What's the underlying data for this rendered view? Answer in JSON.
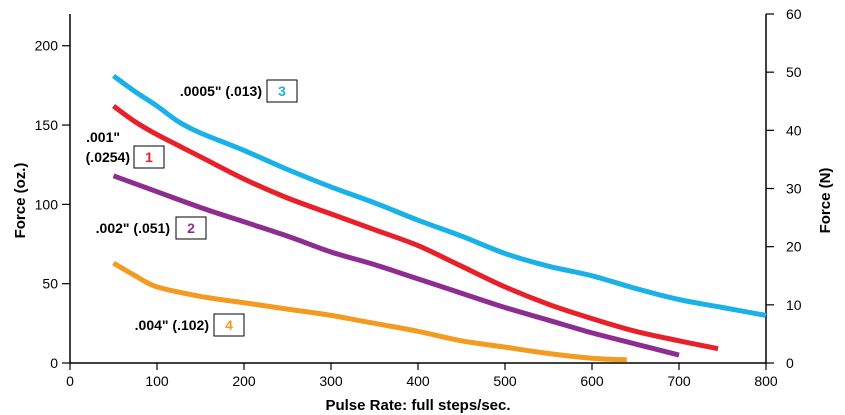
{
  "chart_data": {
    "type": "line",
    "title": "",
    "xlabel": "Pulse Rate: full steps/sec.",
    "ylabel": "Force (oz.)",
    "ylabel_right": "Force (N)",
    "xlim": [
      0,
      800
    ],
    "ylim": [
      0,
      220
    ],
    "ylim_right": [
      0,
      60
    ],
    "x_ticks": [
      0,
      100,
      200,
      300,
      400,
      500,
      600,
      700,
      800
    ],
    "y_ticks": [
      0,
      50,
      100,
      150,
      200
    ],
    "y_ticks_right": [
      0,
      10,
      20,
      30,
      40,
      50,
      60
    ],
    "grid": false,
    "legend": "none",
    "series": [
      {
        "name": ".0005\" (.013)",
        "tag": "3",
        "color": "#1ab0e8",
        "points": [
          [
            50,
            181
          ],
          [
            75,
            171
          ],
          [
            100,
            162
          ],
          [
            125,
            152
          ],
          [
            150,
            145
          ],
          [
            200,
            134
          ],
          [
            250,
            122
          ],
          [
            300,
            111
          ],
          [
            350,
            101
          ],
          [
            400,
            90
          ],
          [
            450,
            80
          ],
          [
            500,
            69
          ],
          [
            550,
            61
          ],
          [
            600,
            55
          ],
          [
            650,
            47
          ],
          [
            700,
            40
          ],
          [
            750,
            35
          ],
          [
            800,
            30
          ]
        ]
      },
      {
        "name": ".001\" (.0254)",
        "tag": "1",
        "color": "#e8202a",
        "points": [
          [
            50,
            162
          ],
          [
            75,
            152
          ],
          [
            100,
            144
          ],
          [
            150,
            130
          ],
          [
            200,
            116
          ],
          [
            250,
            104
          ],
          [
            300,
            94
          ],
          [
            350,
            84
          ],
          [
            400,
            74
          ],
          [
            450,
            61
          ],
          [
            500,
            48
          ],
          [
            550,
            37
          ],
          [
            600,
            28
          ],
          [
            650,
            20
          ],
          [
            700,
            14
          ],
          [
            745,
            9
          ]
        ]
      },
      {
        "name": ".002\" (.051)",
        "tag": "2",
        "color": "#8e2d91",
        "points": [
          [
            50,
            118
          ],
          [
            100,
            108
          ],
          [
            150,
            98
          ],
          [
            200,
            89
          ],
          [
            250,
            80
          ],
          [
            300,
            70
          ],
          [
            350,
            62
          ],
          [
            400,
            53
          ],
          [
            450,
            44
          ],
          [
            500,
            35
          ],
          [
            550,
            27
          ],
          [
            600,
            19
          ],
          [
            650,
            12
          ],
          [
            700,
            5
          ]
        ]
      },
      {
        "name": ".004\" (.102)",
        "tag": "4",
        "color": "#f39a21",
        "points": [
          [
            50,
            63
          ],
          [
            75,
            55
          ],
          [
            100,
            48
          ],
          [
            150,
            42
          ],
          [
            200,
            38
          ],
          [
            250,
            34
          ],
          [
            300,
            30
          ],
          [
            350,
            25
          ],
          [
            400,
            20
          ],
          [
            450,
            14
          ],
          [
            500,
            10
          ],
          [
            550,
            6
          ],
          [
            600,
            3
          ],
          [
            640,
            2
          ]
        ]
      }
    ]
  }
}
